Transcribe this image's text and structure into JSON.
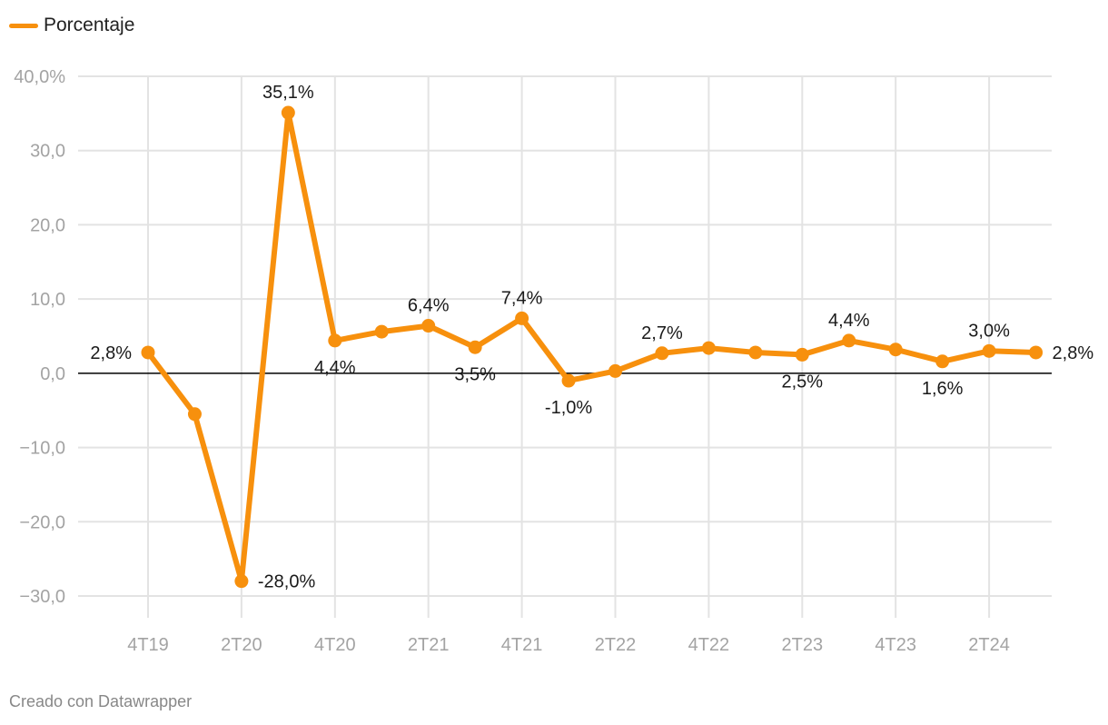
{
  "legend": {
    "label": "Porcentaje"
  },
  "credit": "Creado con Datawrapper",
  "colors": {
    "series": "#f7900d",
    "grid": "#e3e3e3",
    "zero": "#000000",
    "ticks": "#a3a3a3",
    "labels": "#1a1a1a"
  },
  "chart_data": {
    "type": "line",
    "grid": true,
    "legend_position": "top-left",
    "ylim": [
      -30,
      40
    ],
    "y_ticks": [
      {
        "value": 40,
        "label": "40,0%"
      },
      {
        "value": 30,
        "label": "30,0"
      },
      {
        "value": 20,
        "label": "20,0"
      },
      {
        "value": 10,
        "label": "10,0"
      },
      {
        "value": 0,
        "label": "0,0"
      },
      {
        "value": -10,
        "label": "−10,0"
      },
      {
        "value": -20,
        "label": "−20,0"
      },
      {
        "value": -30,
        "label": "−30,0"
      }
    ],
    "x": [
      "4T19",
      "1T20",
      "2T20",
      "3T20",
      "4T20",
      "1T21",
      "2T21",
      "3T21",
      "4T21",
      "1T22",
      "2T22",
      "3T22",
      "4T22",
      "1T23",
      "2T23",
      "3T23",
      "4T23",
      "1T24",
      "2T24",
      "3T24"
    ],
    "x_tick_labels": [
      "4T19",
      "2T20",
      "4T20",
      "2T21",
      "4T21",
      "2T22",
      "4T22",
      "2T23",
      "4T23",
      "2T24"
    ],
    "series": [
      {
        "name": "Porcentaje",
        "values": [
          2.8,
          -5.5,
          -28.0,
          35.1,
          4.4,
          5.6,
          6.4,
          3.5,
          7.4,
          -1.0,
          0.3,
          2.7,
          3.4,
          2.8,
          2.5,
          4.4,
          3.2,
          1.6,
          3.0,
          2.8
        ]
      }
    ],
    "data_labels": [
      {
        "index": 0,
        "text": "2,8%",
        "pos": "left"
      },
      {
        "index": 2,
        "text": "-28,0%",
        "pos": "right"
      },
      {
        "index": 3,
        "text": "35,1%",
        "pos": "above"
      },
      {
        "index": 4,
        "text": "4,4%",
        "pos": "below"
      },
      {
        "index": 6,
        "text": "6,4%",
        "pos": "above"
      },
      {
        "index": 7,
        "text": "3,5%",
        "pos": "below"
      },
      {
        "index": 8,
        "text": "7,4%",
        "pos": "above"
      },
      {
        "index": 9,
        "text": "-1,0%",
        "pos": "below"
      },
      {
        "index": 11,
        "text": "2,7%",
        "pos": "above"
      },
      {
        "index": 14,
        "text": "2,5%",
        "pos": "below"
      },
      {
        "index": 15,
        "text": "4,4%",
        "pos": "above"
      },
      {
        "index": 17,
        "text": "1,6%",
        "pos": "below"
      },
      {
        "index": 18,
        "text": "3,0%",
        "pos": "above"
      },
      {
        "index": 19,
        "text": "2,8%",
        "pos": "right"
      }
    ]
  }
}
